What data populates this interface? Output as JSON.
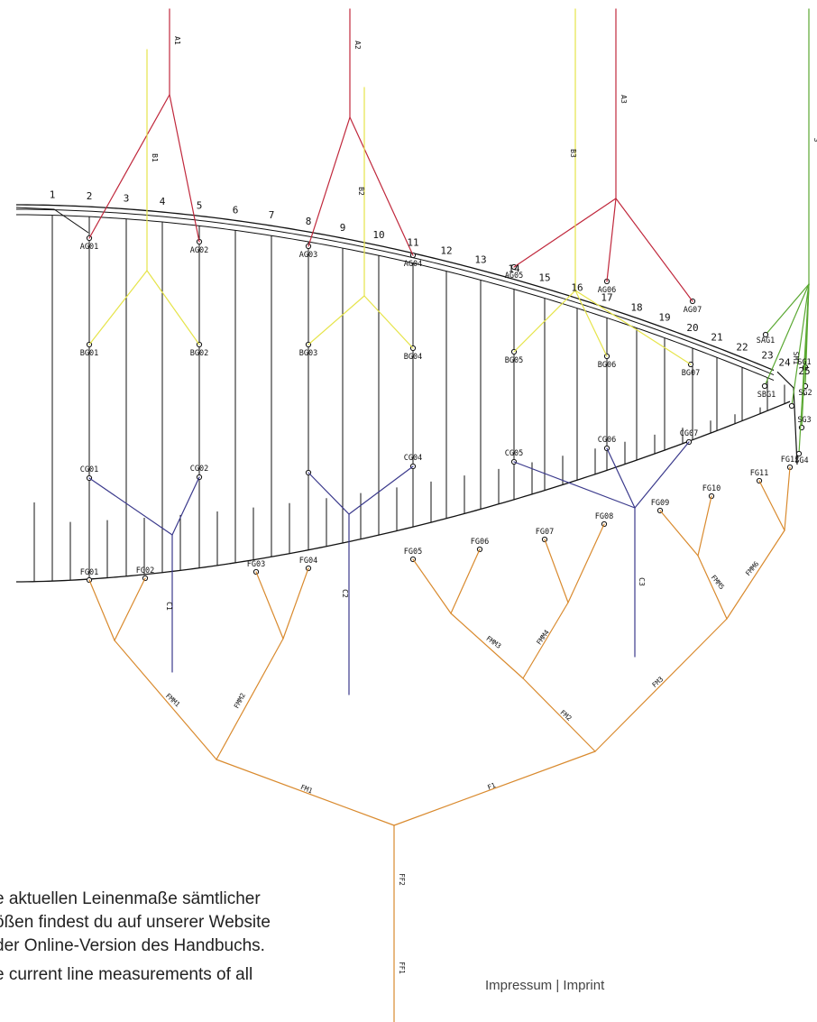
{
  "diagram": {
    "colors": {
      "outline": "#111111",
      "a_lines": "#c0283c",
      "b_lines": "#e6e44a",
      "c_lines": "#3b3a8c",
      "brake_lines": "#d98a2e",
      "stabilo_lines": "#5aa832"
    },
    "rib_numbers": [
      "1",
      "2",
      "3",
      "4",
      "5",
      "6",
      "7",
      "8",
      "9",
      "10",
      "11",
      "12",
      "13",
      "14",
      "15",
      "16",
      "17",
      "18",
      "19",
      "20",
      "21",
      "22",
      "23",
      "24",
      "25"
    ],
    "a_attach": [
      "AG01",
      "AG02",
      "AG03",
      "AG04",
      "AG05",
      "AG06",
      "AG07"
    ],
    "b_attach": [
      "BG01",
      "BG02",
      "BG03",
      "BG04",
      "BG05",
      "BG06",
      "BG07"
    ],
    "c_attach": [
      "CG01",
      "CG02",
      "CG04",
      "CG05",
      "CG06",
      "CG07"
    ],
    "stabilo_attach": [
      "SAG1",
      "SBG1",
      "SG1",
      "SG2",
      "SG3",
      "SG4",
      "SM1"
    ],
    "brake_attach": [
      "FG01",
      "FG02",
      "FG03",
      "FG04",
      "FG05",
      "FG06",
      "FG07",
      "FG08",
      "FG09",
      "FG10",
      "FG11",
      "FG12"
    ],
    "main_lines": {
      "a": [
        "A1",
        "A2",
        "A3"
      ],
      "b": [
        "B1",
        "B2",
        "B3"
      ],
      "c": [
        "C1",
        "C2",
        "C3"
      ],
      "s": "S"
    },
    "brake_lines": [
      "FMM1",
      "FMM2",
      "FMM3",
      "FMM4",
      "FMM5",
      "FMM6",
      "FM1",
      "FM2",
      "FM3",
      "F1",
      "FF2",
      "FF1"
    ]
  },
  "text": {
    "de": [
      "e aktuellen Leinenmaße sämtlicher",
      "ößen findest du auf unserer Website",
      "der Online-Version des Handbuchs."
    ],
    "en": "e current line measurements of all"
  },
  "footer": "Impressum | Imprint"
}
